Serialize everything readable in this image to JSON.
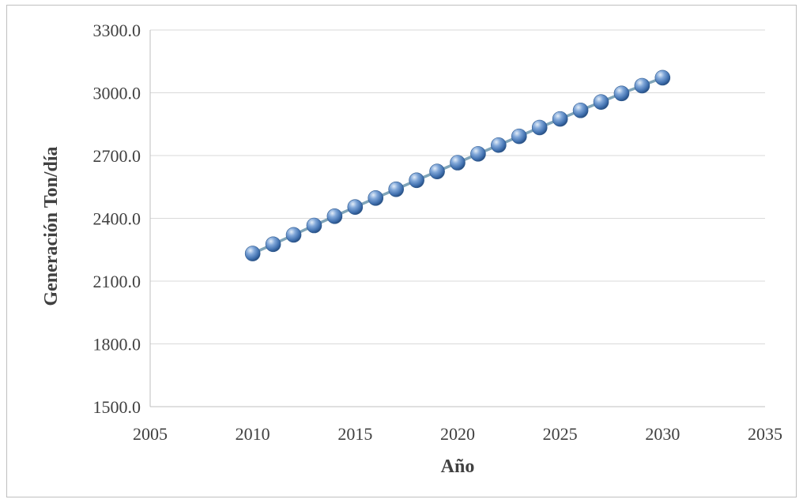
{
  "chart_data": {
    "type": "scatter",
    "title": "",
    "xlabel": "Año",
    "ylabel": "Generación Ton/día",
    "xlim": [
      2005,
      2035
    ],
    "ylim": [
      1500,
      3300
    ],
    "x_ticks": [
      2005,
      2010,
      2015,
      2020,
      2025,
      2030,
      2035
    ],
    "y_ticks": [
      "1500.0",
      "1800.0",
      "2100.0",
      "2400.0",
      "2700.0",
      "3000.0",
      "3300.0"
    ],
    "grid": "horizontal",
    "legend": "none",
    "series": [
      {
        "x": [
          2010,
          2011,
          2012,
          2013,
          2014,
          2015,
          2016,
          2017,
          2018,
          2019,
          2020,
          2021,
          2022,
          2023,
          2024,
          2025,
          2026,
          2027,
          2028,
          2029,
          2030
        ],
        "values": [
          2232,
          2276,
          2321,
          2366,
          2410,
          2454,
          2497,
          2539,
          2582,
          2624,
          2666,
          2708,
          2750,
          2792,
          2834,
          2875,
          2916,
          2956,
          2997,
          3034,
          3072
        ]
      }
    ],
    "colors": {
      "marker": "#4f81bd",
      "line": "#7fa4b9",
      "grid": "#d9d9d9",
      "axis": "#bfbfbf"
    }
  }
}
